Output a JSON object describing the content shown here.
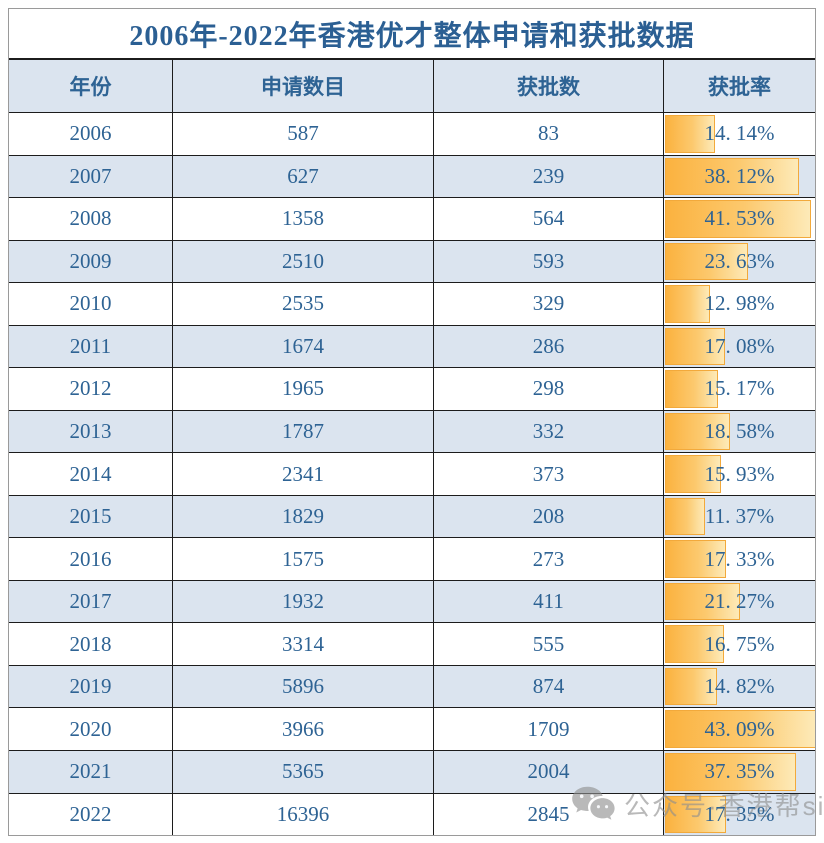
{
  "chart_data": {
    "type": "table",
    "title": "2006年-2022年香港优才整体申请和获批数据",
    "columns": [
      "年份",
      "申请数目",
      "获批数",
      "获批率"
    ],
    "bar_max": 43.09,
    "rows": [
      {
        "year": "2006",
        "applications": "587",
        "approvals": "83",
        "rate_label": "14. 14%",
        "rate_value": 14.14
      },
      {
        "year": "2007",
        "applications": "627",
        "approvals": "239",
        "rate_label": "38. 12%",
        "rate_value": 38.12
      },
      {
        "year": "2008",
        "applications": "1358",
        "approvals": "564",
        "rate_label": "41. 53%",
        "rate_value": 41.53
      },
      {
        "year": "2009",
        "applications": "2510",
        "approvals": "593",
        "rate_label": "23. 63%",
        "rate_value": 23.63
      },
      {
        "year": "2010",
        "applications": "2535",
        "approvals": "329",
        "rate_label": "12. 98%",
        "rate_value": 12.98
      },
      {
        "year": "2011",
        "applications": "1674",
        "approvals": "286",
        "rate_label": "17. 08%",
        "rate_value": 17.08
      },
      {
        "year": "2012",
        "applications": "1965",
        "approvals": "298",
        "rate_label": "15. 17%",
        "rate_value": 15.17
      },
      {
        "year": "2013",
        "applications": "1787",
        "approvals": "332",
        "rate_label": "18. 58%",
        "rate_value": 18.58
      },
      {
        "year": "2014",
        "applications": "2341",
        "approvals": "373",
        "rate_label": "15. 93%",
        "rate_value": 15.93
      },
      {
        "year": "2015",
        "applications": "1829",
        "approvals": "208",
        "rate_label": "11. 37%",
        "rate_value": 11.37
      },
      {
        "year": "2016",
        "applications": "1575",
        "approvals": "273",
        "rate_label": "17. 33%",
        "rate_value": 17.33
      },
      {
        "year": "2017",
        "applications": "1932",
        "approvals": "411",
        "rate_label": "21. 27%",
        "rate_value": 21.27
      },
      {
        "year": "2018",
        "applications": "3314",
        "approvals": "555",
        "rate_label": "16. 75%",
        "rate_value": 16.75
      },
      {
        "year": "2019",
        "applications": "5896",
        "approvals": "874",
        "rate_label": "14. 82%",
        "rate_value": 14.82
      },
      {
        "year": "2020",
        "applications": "3966",
        "approvals": "1709",
        "rate_label": "43. 09%",
        "rate_value": 43.09
      },
      {
        "year": "2021",
        "applications": "5365",
        "approvals": "2004",
        "rate_label": "37. 35%",
        "rate_value": 37.35
      },
      {
        "year": "2022",
        "applications": "16396",
        "approvals": "2845",
        "rate_label": "17. 35%",
        "rate_value": 17.35,
        "rate_shaded": true
      }
    ]
  },
  "watermark": {
    "icon": "wechat-icon",
    "text": "公众号·香港帮sir"
  },
  "colors": {
    "title_text": "#2b5f93",
    "cell_text": "#2e6394",
    "stripe_bg": "#dbe4ef",
    "bar_start": "#fbb23f",
    "bar_end": "#fdeab8",
    "bar_border": "#f2a93b",
    "grid_line": "#1c1c1c",
    "watermark_gray": "#8f8f8f"
  }
}
